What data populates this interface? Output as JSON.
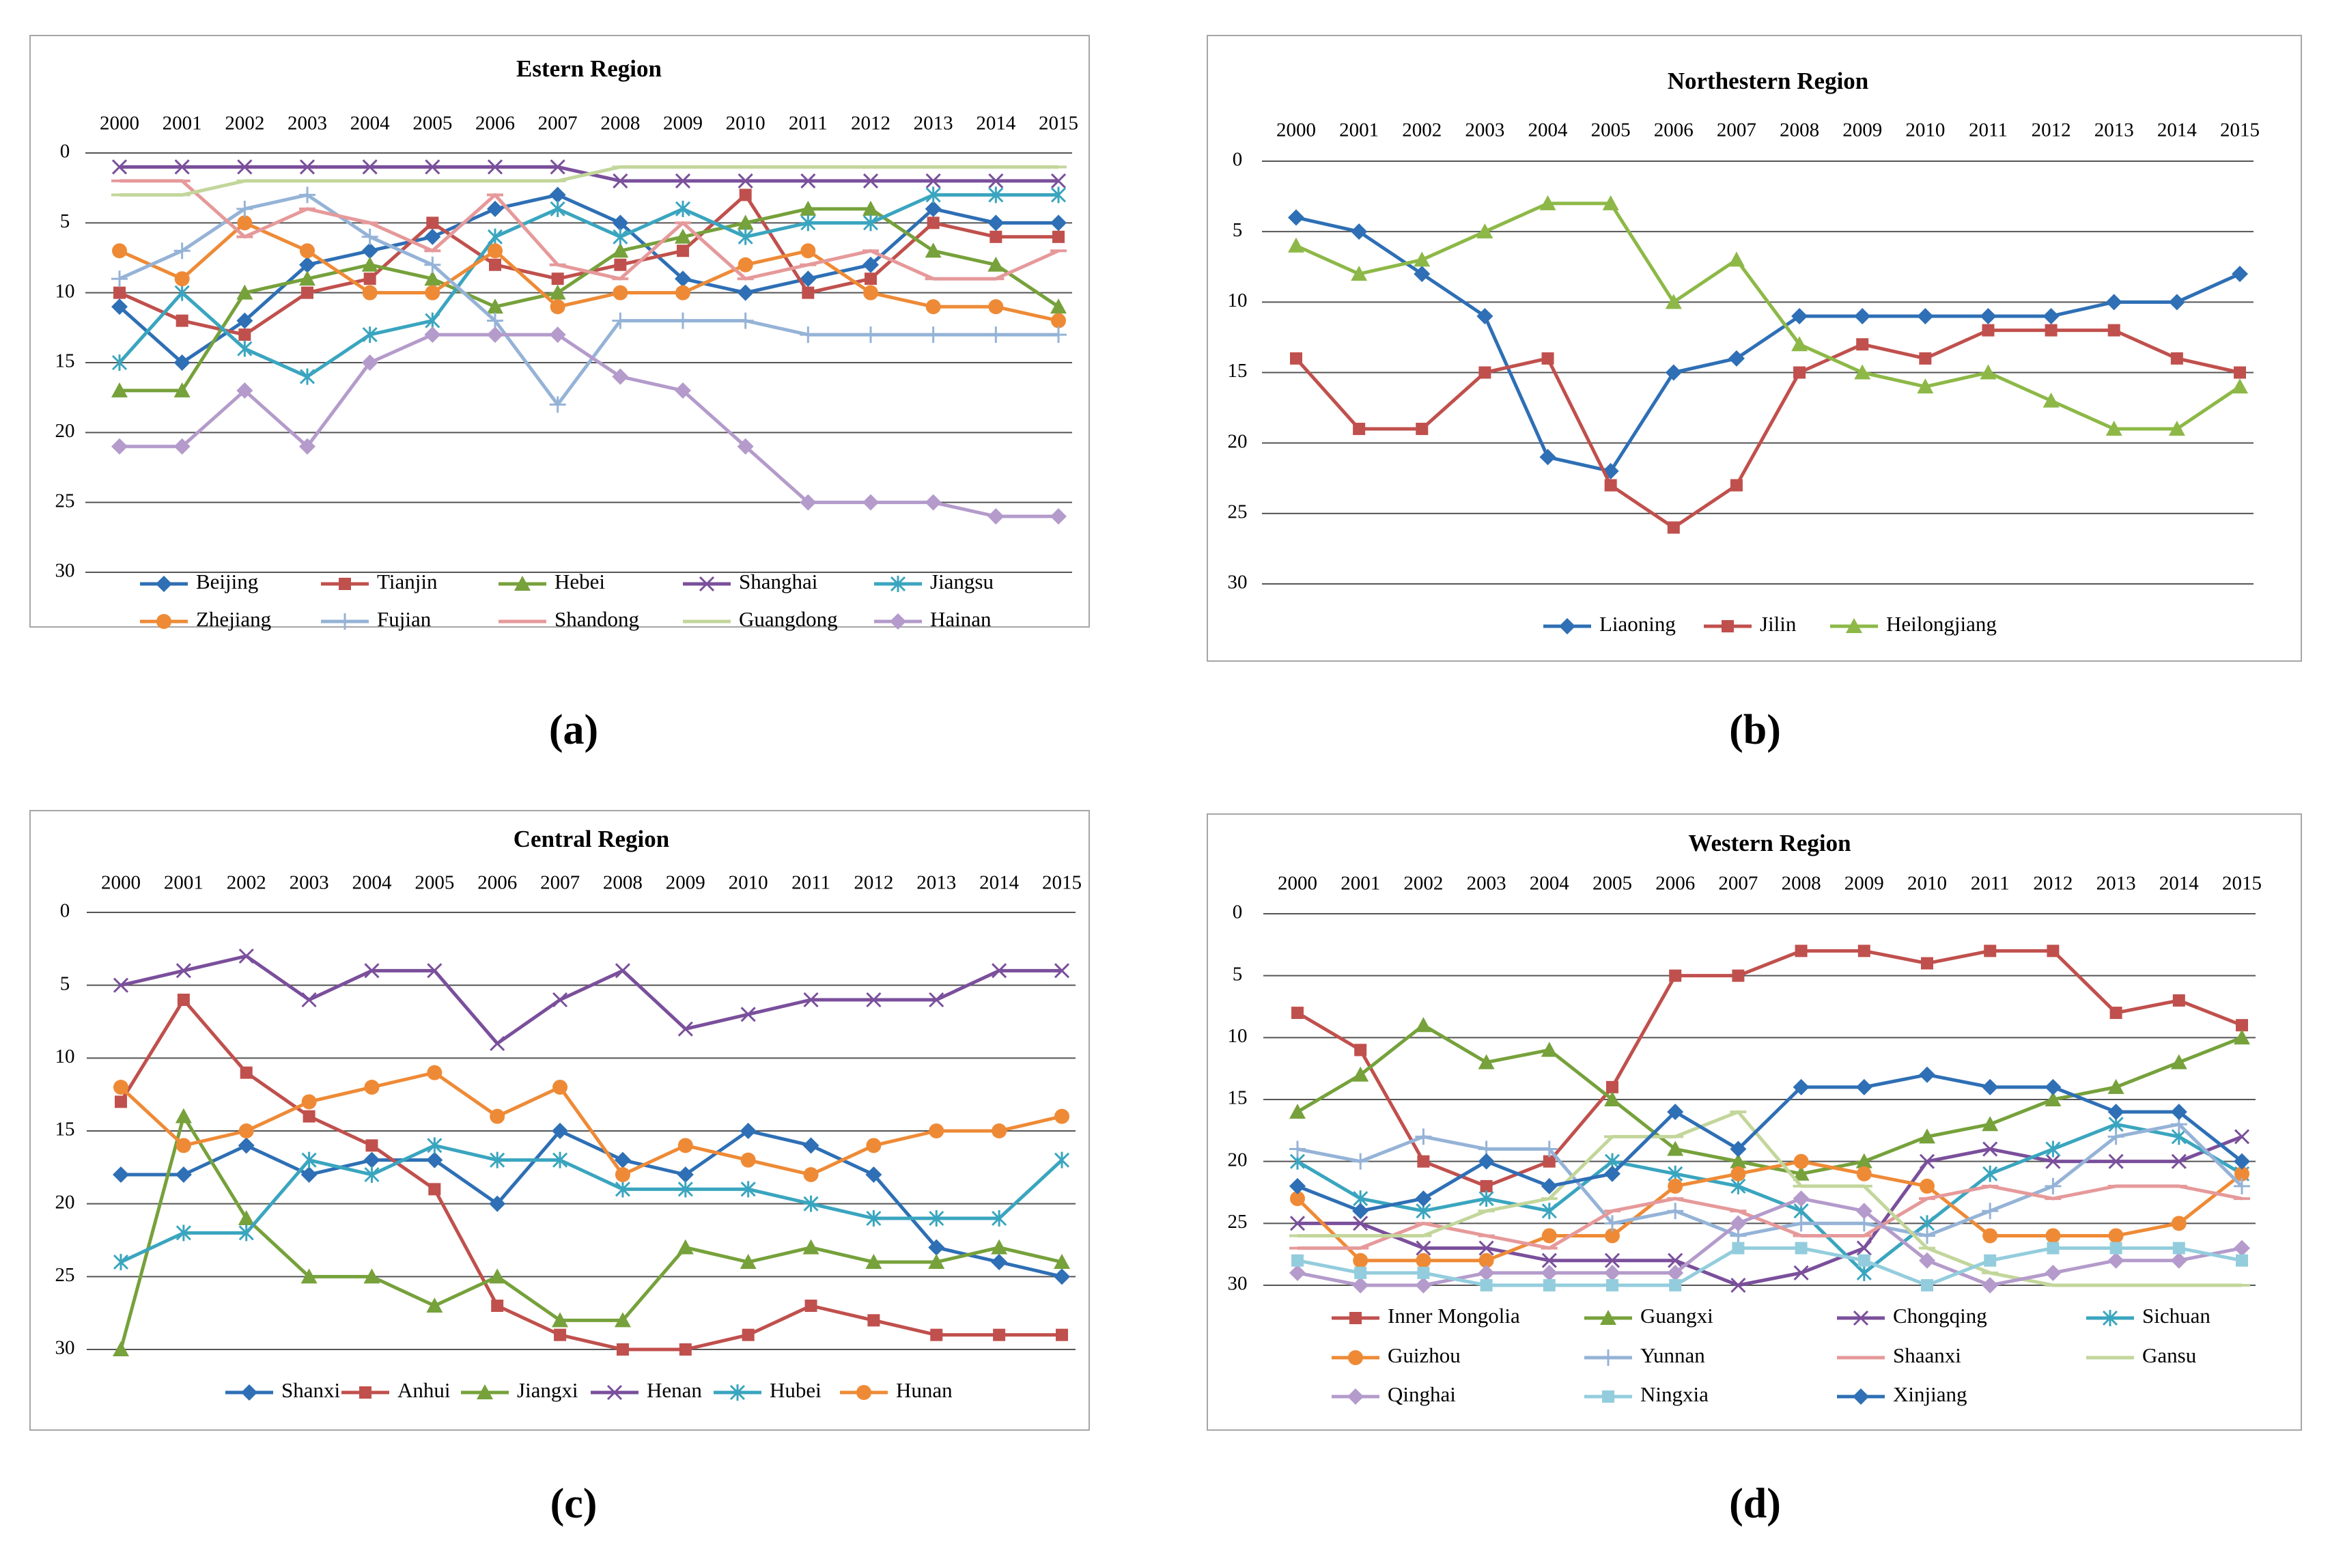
{
  "chart_data": [
    {
      "type": "line",
      "caption": "(a)",
      "title": "Estern Region",
      "x": [
        "2000",
        "2001",
        "2002",
        "2003",
        "2004",
        "2005",
        "2006",
        "2007",
        "2008",
        "2009",
        "2010",
        "2011",
        "2012",
        "2013",
        "2014",
        "2015"
      ],
      "y_ticks": [
        "0",
        "5",
        "10",
        "15",
        "20",
        "25",
        "30"
      ],
      "ylim": [
        0,
        30
      ],
      "y_inverted": true,
      "legend_position": "bottom",
      "series": [
        {
          "name": "Beijing",
          "color": "#2E6FB5",
          "marker": "diamond",
          "values": [
            11,
            15,
            12,
            8,
            7,
            6,
            4,
            3,
            5,
            9,
            10,
            9,
            8,
            4,
            5,
            5
          ]
        },
        {
          "name": "Tianjin",
          "color": "#C0504D",
          "marker": "square",
          "values": [
            10,
            12,
            13,
            10,
            9,
            5,
            8,
            9,
            8,
            7,
            3,
            10,
            9,
            5,
            6,
            6
          ]
        },
        {
          "name": "Hebei",
          "color": "#76A13B",
          "marker": "triangle",
          "values": [
            17,
            17,
            10,
            9,
            8,
            9,
            11,
            10,
            7,
            6,
            5,
            4,
            4,
            7,
            8,
            11
          ]
        },
        {
          "name": "Shanghai",
          "color": "#7A4F9B",
          "marker": "x",
          "values": [
            1,
            1,
            1,
            1,
            1,
            1,
            1,
            1,
            2,
            2,
            2,
            2,
            2,
            2,
            2,
            2
          ]
        },
        {
          "name": "Jiangsu",
          "color": "#3AA5BF",
          "marker": "asterisk",
          "values": [
            15,
            10,
            14,
            16,
            13,
            12,
            6,
            4,
            6,
            4,
            6,
            5,
            5,
            3,
            3,
            3
          ]
        },
        {
          "name": "Zhejiang",
          "color": "#EE8A36",
          "marker": "circle",
          "values": [
            7,
            9,
            5,
            7,
            10,
            10,
            7,
            11,
            10,
            10,
            8,
            7,
            10,
            11,
            11,
            12
          ]
        },
        {
          "name": "Fujian",
          "color": "#95B3D7",
          "marker": "plus",
          "values": [
            9,
            7,
            4,
            3,
            6,
            8,
            12,
            18,
            12,
            12,
            12,
            13,
            13,
            13,
            13,
            13
          ]
        },
        {
          "name": "Shandong",
          "color": "#E6999A",
          "marker": "dash",
          "values": [
            2,
            2,
            6,
            4,
            5,
            7,
            3,
            8,
            9,
            5,
            9,
            8,
            7,
            9,
            9,
            7
          ]
        },
        {
          "name": "Guangdong",
          "color": "#C3D69B",
          "marker": "dash",
          "values": [
            3,
            3,
            2,
            2,
            2,
            2,
            2,
            2,
            1,
            1,
            1,
            1,
            1,
            1,
            1,
            1
          ]
        },
        {
          "name": "Hainan",
          "color": "#B49BCB",
          "marker": "diamond",
          "values": [
            21,
            21,
            17,
            21,
            15,
            13,
            13,
            13,
            16,
            17,
            21,
            25,
            25,
            25,
            26,
            26
          ]
        }
      ]
    },
    {
      "type": "line",
      "caption": "(b)",
      "title": "Northestern Region",
      "x": [
        "2000",
        "2001",
        "2002",
        "2003",
        "2004",
        "2005",
        "2006",
        "2007",
        "2008",
        "2009",
        "2010",
        "2011",
        "2012",
        "2013",
        "2014",
        "2015"
      ],
      "y_ticks": [
        "0",
        "5",
        "10",
        "15",
        "20",
        "25",
        "30"
      ],
      "ylim": [
        0,
        30
      ],
      "y_inverted": true,
      "legend_position": "bottom",
      "series": [
        {
          "name": "Liaoning",
          "color": "#2E6FB5",
          "marker": "diamond",
          "values": [
            4,
            5,
            8,
            11,
            21,
            22,
            15,
            14,
            11,
            11,
            11,
            11,
            11,
            10,
            10,
            8
          ]
        },
        {
          "name": "Jilin",
          "color": "#C0504D",
          "marker": "square",
          "values": [
            14,
            19,
            19,
            15,
            14,
            23,
            26,
            23,
            15,
            13,
            14,
            12,
            12,
            12,
            14,
            15
          ]
        },
        {
          "name": "Heilongjiang",
          "color": "#8DB847",
          "marker": "triangle",
          "values": [
            6,
            8,
            7,
            5,
            3,
            3,
            10,
            7,
            13,
            15,
            16,
            15,
            17,
            19,
            19,
            16
          ]
        }
      ]
    },
    {
      "type": "line",
      "caption": "(c)",
      "title": "Central Region",
      "x": [
        "2000",
        "2001",
        "2002",
        "2003",
        "2004",
        "2005",
        "2006",
        "2007",
        "2008",
        "2009",
        "2010",
        "2011",
        "2012",
        "2013",
        "2014",
        "2015"
      ],
      "y_ticks": [
        "0",
        "5",
        "10",
        "15",
        "20",
        "25",
        "30"
      ],
      "ylim": [
        0,
        30
      ],
      "y_inverted": true,
      "legend_position": "bottom",
      "series": [
        {
          "name": "Shanxi",
          "color": "#2E6FB5",
          "marker": "diamond",
          "values": [
            18,
            18,
            16,
            18,
            17,
            17,
            20,
            15,
            17,
            18,
            15,
            16,
            18,
            23,
            24,
            25
          ]
        },
        {
          "name": "Anhui",
          "color": "#C0504D",
          "marker": "square",
          "values": [
            13,
            6,
            11,
            14,
            16,
            19,
            27,
            29,
            30,
            30,
            29,
            27,
            28,
            29,
            29,
            29
          ]
        },
        {
          "name": "Jiangxi",
          "color": "#76A13B",
          "marker": "triangle",
          "values": [
            30,
            14,
            21,
            25,
            25,
            27,
            25,
            28,
            28,
            23,
            24,
            23,
            24,
            24,
            23,
            24
          ]
        },
        {
          "name": "Henan",
          "color": "#7A4F9B",
          "marker": "x",
          "values": [
            5,
            4,
            3,
            6,
            4,
            4,
            9,
            6,
            4,
            8,
            7,
            6,
            6,
            6,
            4,
            4
          ]
        },
        {
          "name": "Hubei",
          "color": "#3AA5BF",
          "marker": "asterisk",
          "values": [
            24,
            22,
            22,
            17,
            18,
            16,
            17,
            17,
            19,
            19,
            19,
            20,
            21,
            21,
            21,
            17
          ]
        },
        {
          "name": "Hunan",
          "color": "#EE8A36",
          "marker": "circle",
          "values": [
            12,
            16,
            15,
            13,
            12,
            11,
            14,
            12,
            18,
            16,
            17,
            18,
            16,
            15,
            15,
            14
          ]
        }
      ]
    },
    {
      "type": "line",
      "caption": "(d)",
      "title": "Western Region",
      "x": [
        "2000",
        "2001",
        "2002",
        "2003",
        "2004",
        "2005",
        "2006",
        "2007",
        "2008",
        "2009",
        "2010",
        "2011",
        "2012",
        "2013",
        "2014",
        "2015"
      ],
      "y_ticks": [
        "0",
        "5",
        "10",
        "15",
        "20",
        "25",
        "30"
      ],
      "ylim": [
        0,
        30
      ],
      "y_inverted": true,
      "legend_position": "bottom",
      "series": [
        {
          "name": "Inner Mongolia",
          "color": "#C0504D",
          "marker": "square",
          "values": [
            8,
            11,
            20,
            22,
            20,
            14,
            5,
            5,
            3,
            3,
            4,
            3,
            3,
            8,
            7,
            9
          ]
        },
        {
          "name": "Guangxi",
          "color": "#76A13B",
          "marker": "triangle",
          "values": [
            16,
            13,
            9,
            12,
            11,
            15,
            19,
            20,
            21,
            20,
            18,
            17,
            15,
            14,
            12,
            10
          ]
        },
        {
          "name": "Chongqing",
          "color": "#7A4F9B",
          "marker": "x",
          "values": [
            25,
            25,
            27,
            27,
            28,
            28,
            28,
            30,
            29,
            27,
            20,
            19,
            20,
            20,
            20,
            18
          ]
        },
        {
          "name": "Sichuan",
          "color": "#3AA5BF",
          "marker": "asterisk",
          "values": [
            20,
            23,
            24,
            23,
            24,
            20,
            21,
            22,
            24,
            29,
            25,
            21,
            19,
            17,
            18,
            21
          ]
        },
        {
          "name": "Guizhou",
          "color": "#EE8A36",
          "marker": "circle",
          "values": [
            23,
            28,
            28,
            28,
            26,
            26,
            22,
            21,
            20,
            21,
            22,
            26,
            26,
            26,
            25,
            21
          ]
        },
        {
          "name": "Yunnan",
          "color": "#95B3D7",
          "marker": "plus",
          "values": [
            19,
            20,
            18,
            19,
            19,
            25,
            24,
            26,
            25,
            25,
            26,
            24,
            22,
            18,
            17,
            22
          ]
        },
        {
          "name": "Shaanxi",
          "color": "#E6999A",
          "marker": "dash",
          "values": [
            27,
            27,
            25,
            26,
            27,
            24,
            23,
            24,
            26,
            26,
            23,
            22,
            23,
            22,
            22,
            23
          ]
        },
        {
          "name": "Gansu",
          "color": "#C3D69B",
          "marker": "dash",
          "values": [
            26,
            26,
            26,
            24,
            23,
            18,
            18,
            16,
            22,
            22,
            27,
            29,
            30,
            30,
            30,
            30
          ]
        },
        {
          "name": "Qinghai",
          "color": "#B49BCB",
          "marker": "diamond",
          "values": [
            29,
            30,
            30,
            29,
            29,
            29,
            29,
            25,
            23,
            24,
            28,
            30,
            29,
            28,
            28,
            27
          ]
        },
        {
          "name": "Ningxia",
          "color": "#93CDDD",
          "marker": "square",
          "values": [
            28,
            29,
            29,
            30,
            30,
            30,
            30,
            27,
            27,
            28,
            30,
            28,
            27,
            27,
            27,
            28
          ]
        },
        {
          "name": "Xinjiang",
          "color": "#2E6FB5",
          "marker": "diamond",
          "values": [
            22,
            24,
            23,
            20,
            22,
            21,
            16,
            19,
            14,
            14,
            13,
            14,
            14,
            16,
            16,
            20
          ]
        }
      ]
    }
  ]
}
